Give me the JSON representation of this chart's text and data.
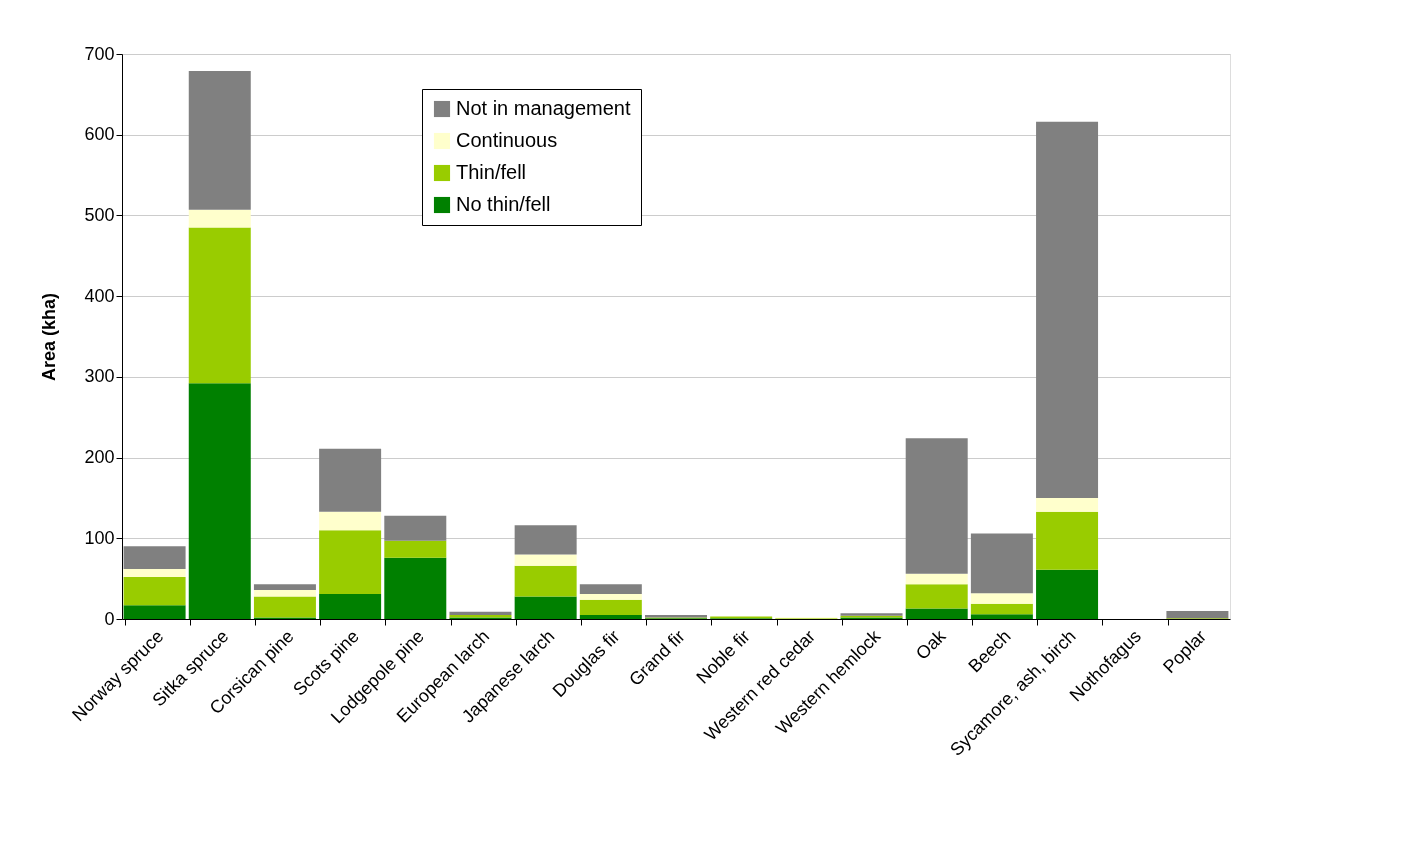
{
  "chart_data": {
    "type": "bar",
    "stacked": true,
    "ylabel": "Area (kha)",
    "categories": [
      "Norway spruce",
      "Sitka spruce",
      "Corsican pine",
      "Scots pine",
      "Lodgepole pine",
      "European larch",
      "Japanese larch",
      "Douglas fir",
      "Grand fir",
      "Noble fir",
      "Western red cedar",
      "Western hemlock",
      "Oak",
      "Beech",
      "Sycamore, ash, birch",
      "Nothofagus",
      "Poplar"
    ],
    "series": [
      {
        "name": "No thin/fell",
        "color": "#008000",
        "values": [
          17,
          292,
          2,
          31,
          76,
          2,
          28,
          5,
          1,
          1,
          0,
          2,
          13,
          6,
          61,
          0,
          0
        ]
      },
      {
        "name": "Thin/fell",
        "color": "#99cc00",
        "values": [
          35,
          193,
          26,
          79,
          21,
          3,
          38,
          19,
          1,
          2,
          1,
          2,
          30,
          13,
          72,
          0,
          1
        ]
      },
      {
        "name": "Continuous",
        "color": "#ffffcc",
        "values": [
          10,
          22,
          8,
          23,
          null,
          null,
          14,
          7,
          0,
          0,
          1,
          null,
          13,
          13,
          17,
          0,
          0
        ]
      },
      {
        "name": "Not in management",
        "color": "#808080",
        "values": [
          28,
          172,
          7,
          78,
          31,
          4,
          36,
          12,
          3,
          0,
          0,
          3,
          168,
          74,
          466,
          0,
          9
        ]
      }
    ],
    "ylim": [
      0,
      700
    ],
    "yticks": [
      0,
      100,
      200,
      300,
      400,
      500,
      600,
      700
    ],
    "grid": "y",
    "legend": "top"
  }
}
